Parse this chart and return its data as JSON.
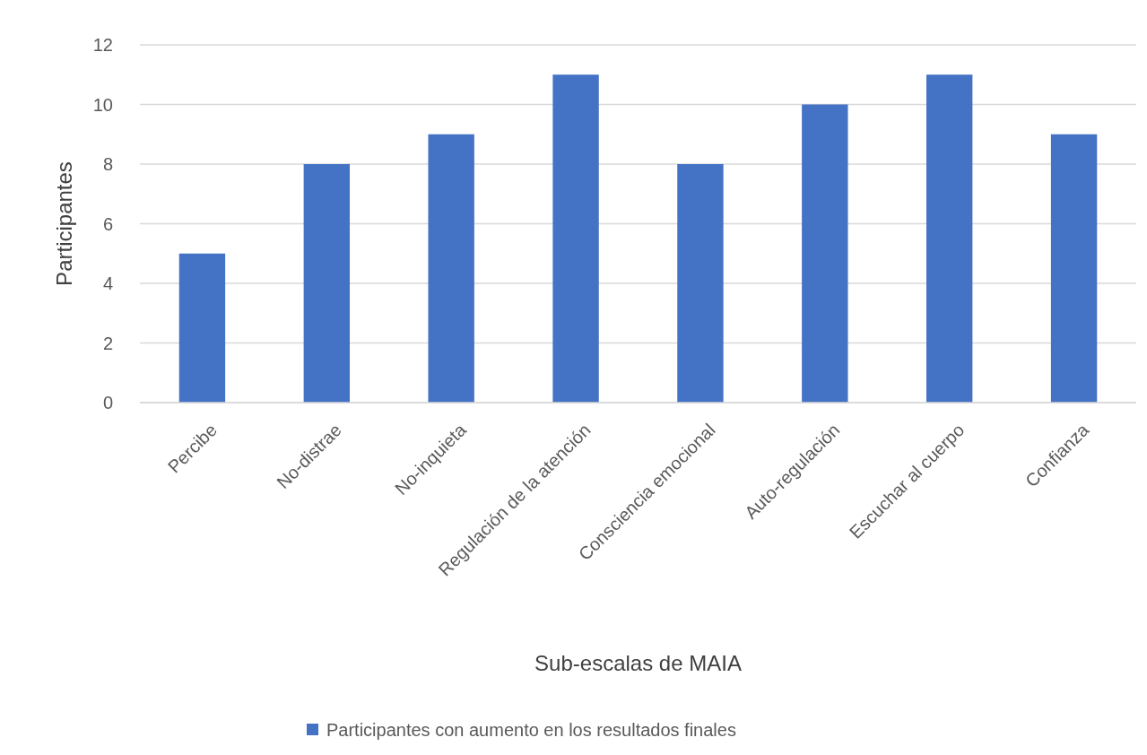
{
  "chart_data": {
    "type": "bar",
    "xlabel": "Sub-escalas de MAIA",
    "ylabel": "Participantes",
    "categories": [
      "Percibe",
      "No-distrae",
      "No-inquieta",
      "Regulación de la atención",
      "Consciencia emocional",
      "Auto-regulación",
      "Escuchar al cuerpo",
      "Confianza"
    ],
    "series": [
      {
        "name": "Participantes con aumento en los resultados finales",
        "color": "#4472c4",
        "values": [
          5,
          8,
          9,
          11,
          8,
          10,
          11,
          9
        ]
      }
    ],
    "ylim": [
      0,
      12
    ],
    "yticks": [
      0,
      2,
      4,
      6,
      8,
      10,
      12
    ],
    "grid": "y",
    "legend": "bottom"
  }
}
